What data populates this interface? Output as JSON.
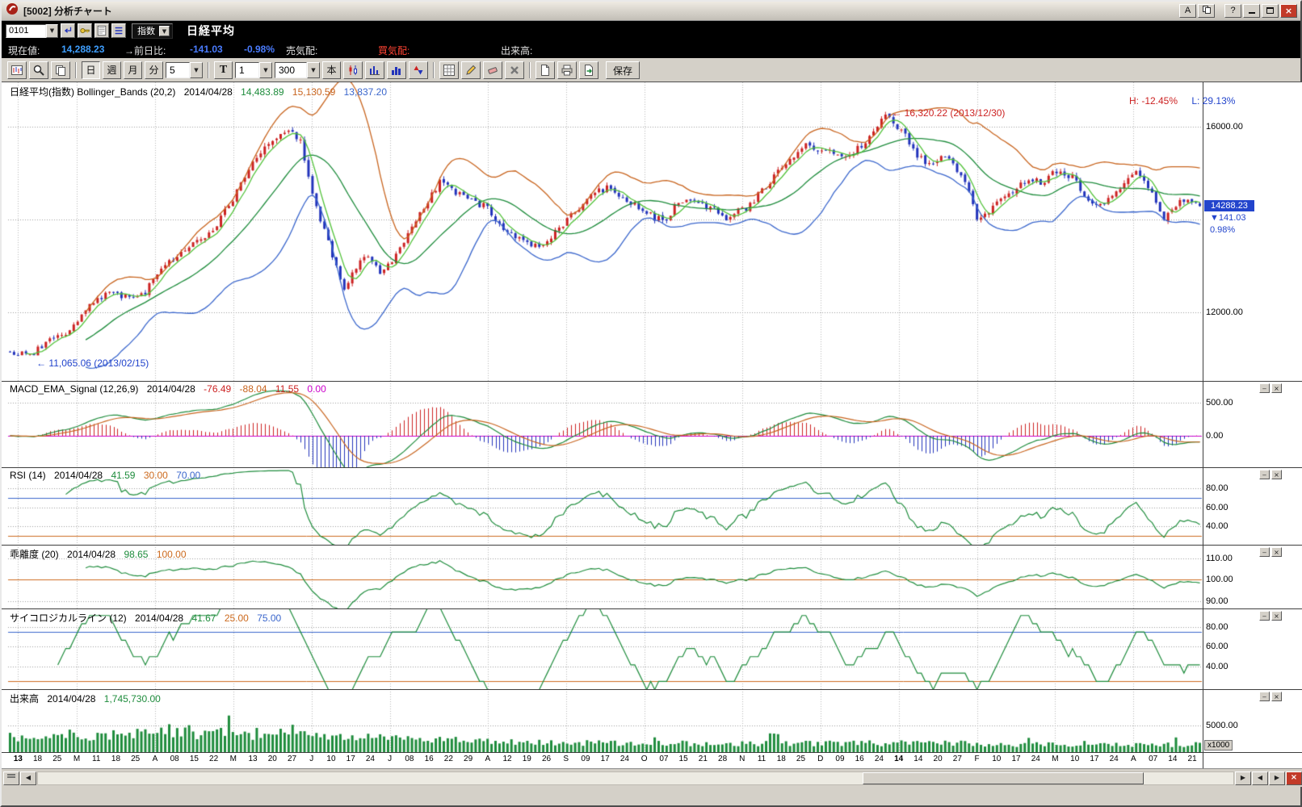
{
  "window": {
    "title": "[5002] 分析チャート",
    "buttons": {
      "font": "A",
      "help": "?"
    }
  },
  "quote_bar": {
    "code": "0101",
    "market_type": "指数",
    "symbol_name": "日経平均",
    "labels": {
      "current": "現在値:",
      "change": "→前日比:",
      "ask": "売気配:",
      "bid": "買気配:",
      "volume": "出来高:"
    },
    "values": {
      "current": "14,288.23",
      "change": "-141.03",
      "change_pct": "-0.98%"
    }
  },
  "toolbar": {
    "period_day": "日",
    "period_week": "週",
    "period_month": "月",
    "period_minute": "分",
    "minute_value": "5",
    "t_label": "T",
    "interval_value": "1",
    "bars_value": "300",
    "bars_unit": "本",
    "save": "保存"
  },
  "panels": {
    "main": {
      "title": "日経平均(指数) Bollinger_Bands (20,2)",
      "date": "2014/04/28",
      "mid": "14,483.89",
      "upper": "15,130.59",
      "lower": "13,837.20",
      "high_pct": "H: -12.45%",
      "low_pct": "L: 29.13%",
      "annotation_high": "← 16,320.22 (2013/12/30)",
      "annotation_low": "← 11,065.06 (2013/02/15)",
      "marker_price": "14288.23",
      "marker_change": "▼141.03",
      "marker_pct": "0.98%"
    },
    "macd": {
      "title": "MACD_EMA_Signal (12,26,9)",
      "date": "2014/04/28",
      "v1": "-76.49",
      "v2": "-88.04",
      "v3": "11.55",
      "v4": "0.00"
    },
    "rsi": {
      "title": "RSI (14)",
      "date": "2014/04/28",
      "v1": "41.59",
      "v2": "30.00",
      "v3": "70.00"
    },
    "kairi": {
      "title": "乖離度 (20)",
      "date": "2014/04/28",
      "v1": "98.65",
      "v2": "100.00"
    },
    "psych": {
      "title": "サイコロジカルライン (12)",
      "date": "2014/04/28",
      "v1": "41.67",
      "v2": "25.00",
      "v3": "75.00"
    },
    "volume": {
      "title": "出来高",
      "date": "2014/04/28",
      "v1": "1,745,730.00",
      "multiplier": "x1000"
    }
  },
  "chart_data": {
    "type": "candlestick",
    "period": "daily",
    "bar_count": 300,
    "x_labels": [
      "13",
      "18",
      "25",
      "M",
      "11",
      "18",
      "25",
      "A",
      "08",
      "15",
      "22",
      "M",
      "13",
      "20",
      "27",
      "J",
      "10",
      "17",
      "24",
      "J",
      "08",
      "16",
      "22",
      "29",
      "A",
      "12",
      "19",
      "26",
      "S",
      "09",
      "17",
      "24",
      "O",
      "07",
      "15",
      "21",
      "28",
      "N",
      "11",
      "18",
      "25",
      "D",
      "09",
      "16",
      "24",
      "14",
      "14",
      "20",
      "27",
      "F",
      "10",
      "17",
      "24",
      "M",
      "10",
      "17",
      "24",
      "A",
      "07",
      "14",
      "21"
    ],
    "month_tick_indices": [
      0,
      3,
      7,
      11,
      15,
      19,
      24,
      28,
      32,
      37,
      41,
      45,
      49,
      53,
      57
    ],
    "year_label_indices": [
      0,
      45
    ],
    "key_points": {
      "low": {
        "index": 5,
        "value": 11065.06,
        "date": "2013/02/15"
      },
      "high": {
        "index": 220,
        "value": 16320.22,
        "date": "2013/12/30"
      },
      "last_close": 14288.23,
      "last_change": -141.03,
      "last_change_pct": -0.98,
      "last_volume_thousands": 1745.73
    },
    "price_waypoints": [
      [
        0,
        11150
      ],
      [
        5,
        11065
      ],
      [
        10,
        11400
      ],
      [
        14,
        11550
      ],
      [
        20,
        12150
      ],
      [
        25,
        12450
      ],
      [
        30,
        12300
      ],
      [
        34,
        12450
      ],
      [
        38,
        12950
      ],
      [
        43,
        13300
      ],
      [
        48,
        13550
      ],
      [
        52,
        13900
      ],
      [
        57,
        14600
      ],
      [
        62,
        15350
      ],
      [
        66,
        15650
      ],
      [
        70,
        15900
      ],
      [
        73,
        15650
      ],
      [
        76,
        14500
      ],
      [
        80,
        13500
      ],
      [
        84,
        12500
      ],
      [
        87,
        13000
      ],
      [
        90,
        13250
      ],
      [
        93,
        12900
      ],
      [
        97,
        13200
      ],
      [
        103,
        14100
      ],
      [
        108,
        14800
      ],
      [
        112,
        14550
      ],
      [
        116,
        14400
      ],
      [
        120,
        14250
      ],
      [
        125,
        13700
      ],
      [
        130,
        13450
      ],
      [
        134,
        13400
      ],
      [
        139,
        13900
      ],
      [
        145,
        14450
      ],
      [
        150,
        14700
      ],
      [
        155,
        14450
      ],
      [
        160,
        14150
      ],
      [
        164,
        13950
      ],
      [
        168,
        14350
      ],
      [
        172,
        14450
      ],
      [
        176,
        14250
      ],
      [
        180,
        14050
      ],
      [
        185,
        14250
      ],
      [
        190,
        14700
      ],
      [
        195,
        15200
      ],
      [
        200,
        15600
      ],
      [
        205,
        15450
      ],
      [
        210,
        15300
      ],
      [
        214,
        15600
      ],
      [
        218,
        16050
      ],
      [
        220,
        16250
      ],
      [
        224,
        15900
      ],
      [
        228,
        15400
      ],
      [
        231,
        15150
      ],
      [
        235,
        15400
      ],
      [
        239,
        15000
      ],
      [
        243,
        14050
      ],
      [
        247,
        14250
      ],
      [
        251,
        14550
      ],
      [
        255,
        14850
      ],
      [
        259,
        14800
      ],
      [
        263,
        15050
      ],
      [
        267,
        14900
      ],
      [
        270,
        14500
      ],
      [
        273,
        14250
      ],
      [
        276,
        14450
      ],
      [
        279,
        14650
      ],
      [
        283,
        15000
      ],
      [
        286,
        14700
      ],
      [
        290,
        14050
      ],
      [
        293,
        14350
      ],
      [
        296,
        14450
      ],
      [
        299,
        14288.23
      ]
    ],
    "indicators": {
      "bollinger_period": 20,
      "bollinger_sigma": 2,
      "ma_fast_period": 5,
      "macd_params": [
        12,
        26,
        9
      ],
      "rsi_period": 14,
      "kairi_period": 20,
      "psych_period": 12
    },
    "axes": {
      "main": {
        "range": [
          10522,
          16956
        ],
        "gridlines": [
          12000,
          14000,
          16000
        ],
        "labels": [
          {
            "t": "16000.00",
            "v": 16000
          },
          {
            "t": "12000.00",
            "v": 12000
          }
        ]
      },
      "macd": {
        "range": [
          -476,
          829
        ],
        "gridlines": [
          0,
          500
        ],
        "labels": [
          {
            "t": "500.00",
            "v": 500
          },
          {
            "t": "0.00",
            "v": 0
          }
        ],
        "ref_lines": [
          {
            "v": 0,
            "color": "#cc00cc"
          }
        ]
      },
      "rsi": {
        "range": [
          21,
          102
        ],
        "gridlines": [
          40,
          60,
          80
        ],
        "labels": [
          {
            "t": "80.00",
            "v": 80
          },
          {
            "t": "60.00",
            "v": 60
          },
          {
            "t": "40.00",
            "v": 40
          }
        ],
        "ref_lines": [
          {
            "v": 70,
            "color": "#3a66cc"
          },
          {
            "v": 30,
            "color": "#cc6a1e"
          }
        ]
      },
      "kairi": {
        "range": [
          86.6,
          116.4
        ],
        "gridlines": [
          90,
          100,
          110
        ],
        "labels": [
          {
            "t": "110.00",
            "v": 110
          },
          {
            "t": "100.00",
            "v": 100
          },
          {
            "t": "90.00",
            "v": 90
          }
        ],
        "ref_lines": [
          {
            "v": 100,
            "color": "#cc6a1e"
          }
        ]
      },
      "psych": {
        "range": [
          17.1,
          98.8
        ],
        "gridlines": [
          40,
          60,
          80
        ],
        "labels": [
          {
            "t": "80.00",
            "v": 80
          },
          {
            "t": "60.00",
            "v": 60
          },
          {
            "t": "40.00",
            "v": 40
          }
        ],
        "ref_lines": [
          {
            "v": 75,
            "color": "#3a66cc"
          },
          {
            "v": 25,
            "color": "#cc6a1e"
          }
        ]
      },
      "volume": {
        "range": [
          0,
          11800
        ],
        "gridlines": [
          5000
        ],
        "labels": [
          {
            "t": "5000.00",
            "v": 5000
          }
        ]
      }
    },
    "colors": {
      "up": "#cc2222",
      "down": "#2233bb",
      "bb_mid": "#1e8c3c",
      "bb_upper": "#c8641e",
      "bb_lower": "#3a66cc",
      "ma_fast": "#52c23a",
      "macd_line": "#1e8c3c",
      "signal_line": "#c8641e",
      "hist_pos": "#cc2222",
      "hist_neg": "#2233bb",
      "indicator_line": "#1e8c3c",
      "volume_bar": "#1e8c3c",
      "grid": "#9a9a9a",
      "grid_v": "#b8b8b8",
      "marker_bg": "#2244cc"
    }
  }
}
